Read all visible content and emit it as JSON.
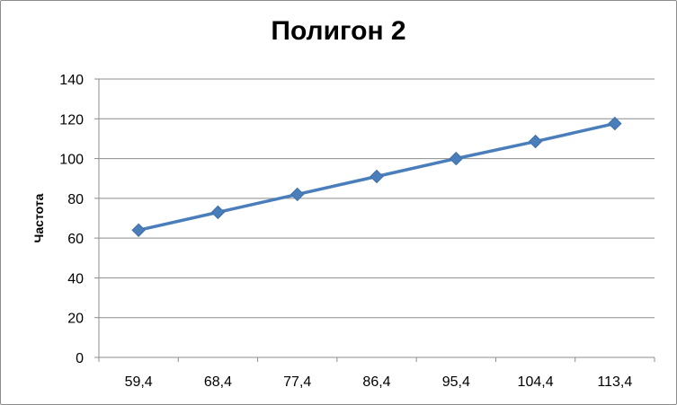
{
  "chart_data": {
    "type": "line",
    "title": "Полигон 2",
    "xlabel": "",
    "ylabel": "Частота",
    "categories": [
      "59,4",
      "68,4",
      "77,4",
      "86,4",
      "95,4",
      "104,4",
      "113,4"
    ],
    "series": [
      {
        "values": [
          64,
          73,
          82,
          91,
          100,
          108.6,
          117.6
        ]
      }
    ],
    "ylim": [
      0,
      140
    ],
    "yticks": [
      0,
      20,
      40,
      60,
      80,
      100,
      120,
      140
    ],
    "grid": true,
    "legend": "none",
    "colors": {
      "line": "#4a7ebb",
      "marker": "#4a7ebb",
      "grid": "#8c8c8c",
      "axis": "#8c8c8c"
    },
    "marker": "diamond"
  }
}
